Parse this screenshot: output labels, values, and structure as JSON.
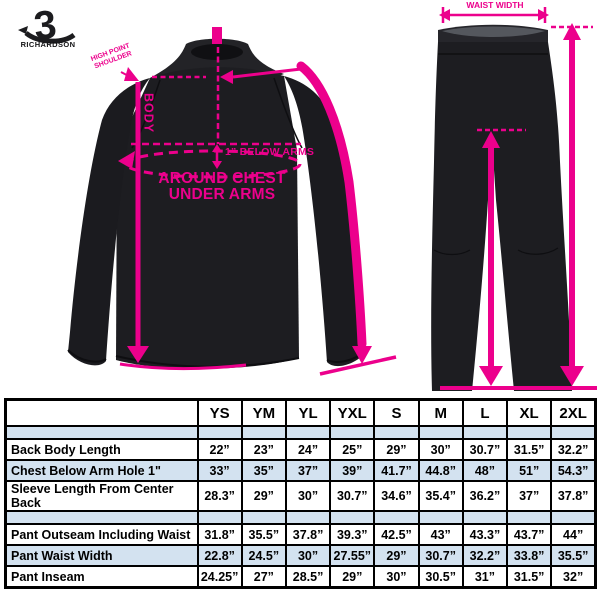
{
  "colors": {
    "accent_pink": "#EC008C",
    "garment_dark": "#1d1d21",
    "table_stripe_blue": "#d3e2f0",
    "table_border": "#000000"
  },
  "logo": {
    "glyph": "3",
    "wordmark": "RICHARDSON"
  },
  "jacket_annotations": {
    "shoulder_point_label": "HIGH POINT SHOULDER",
    "body_label": "BODY",
    "below_arms_label": "1” BELOW ARMS",
    "around_chest_line1": "AROUND CHEST",
    "around_chest_line2": "UNDER ARMS"
  },
  "pants_annotations": {
    "waist_label": "WAIST WIDTH"
  },
  "size_chart": {
    "sizes": [
      "YS",
      "YM",
      "YL",
      "YXL",
      "S",
      "M",
      "L",
      "XL",
      "2XL"
    ],
    "jacket_rows": [
      {
        "label": "Back Body Length",
        "values": [
          "22”",
          "23”",
          "24”",
          "25”",
          "29”",
          "30”",
          "30.7”",
          "31.5”",
          "32.2”"
        ]
      },
      {
        "label": "Chest Below Arm Hole 1\"",
        "values": [
          "33”",
          "35”",
          "37”",
          "39”",
          "41.7”",
          "44.8”",
          "48”",
          "51”",
          "54.3”"
        ]
      },
      {
        "label": "Sleeve Length From Center Back",
        "values": [
          "28.3”",
          "29”",
          "30”",
          "30.7”",
          "34.6”",
          "35.4”",
          "36.2”",
          "37”",
          "37.8”"
        ]
      }
    ],
    "pant_rows": [
      {
        "label": "Pant Outseam Including Waist",
        "values": [
          "31.8”",
          "35.5”",
          "37.8”",
          "39.3”",
          "42.5”",
          "43”",
          "43.3”",
          "43.7”",
          "44”"
        ]
      },
      {
        "label": "Pant Waist Width",
        "values": [
          "22.8”",
          "24.5”",
          "30”",
          "27.55”",
          "29”",
          "30.7”",
          "32.2”",
          "33.8”",
          "35.5”"
        ]
      },
      {
        "label": "Pant Inseam",
        "values": [
          "24.25”",
          "27”",
          "28.5”",
          "29”",
          "30”",
          "30.5”",
          "31”",
          "31.5”",
          "32”"
        ]
      }
    ]
  }
}
